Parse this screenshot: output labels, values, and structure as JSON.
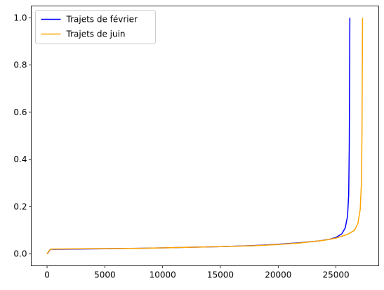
{
  "chart_data": {
    "type": "line",
    "title": "",
    "xlabel": "",
    "ylabel": "",
    "xlim": [
      -1370,
      28700
    ],
    "ylim": [
      -0.05,
      1.05
    ],
    "x_ticks": [
      0,
      5000,
      10000,
      15000,
      20000,
      25000
    ],
    "x_tick_labels": [
      "0",
      "5000",
      "10000",
      "15000",
      "20000",
      "25000"
    ],
    "y_ticks": [
      0.0,
      0.2,
      0.4,
      0.6,
      0.8,
      1.0
    ],
    "y_tick_labels": [
      "0.0",
      "0.2",
      "0.4",
      "0.6",
      "0.8",
      "1.0"
    ],
    "grid": false,
    "legend_position": "upper left",
    "series": [
      {
        "name": "Trajets de février",
        "color": "#0000ff",
        "x": [
          0,
          150,
          300,
          500,
          1000,
          3000,
          5000,
          8000,
          10000,
          12000,
          15000,
          18000,
          20000,
          22000,
          23500,
          24500,
          25000,
          25500,
          25800,
          26000,
          26100,
          26150,
          26200
        ],
        "y": [
          0.0,
          0.01,
          0.02,
          0.02,
          0.02,
          0.021,
          0.022,
          0.024,
          0.026,
          0.028,
          0.031,
          0.036,
          0.041,
          0.048,
          0.055,
          0.063,
          0.07,
          0.085,
          0.11,
          0.16,
          0.25,
          0.45,
          1.0
        ]
      },
      {
        "name": "Trajets de juin",
        "color": "#ffa500",
        "x": [
          0,
          150,
          300,
          500,
          1000,
          3000,
          5000,
          8000,
          10000,
          12000,
          15000,
          18000,
          20000,
          22000,
          24000,
          25000,
          26000,
          26600,
          26900,
          27100,
          27200,
          27250,
          27300
        ],
        "y": [
          0.0,
          0.012,
          0.02,
          0.021,
          0.021,
          0.022,
          0.023,
          0.024,
          0.026,
          0.028,
          0.031,
          0.035,
          0.04,
          0.047,
          0.058,
          0.067,
          0.083,
          0.1,
          0.13,
          0.19,
          0.3,
          0.5,
          1.0
        ]
      }
    ]
  }
}
